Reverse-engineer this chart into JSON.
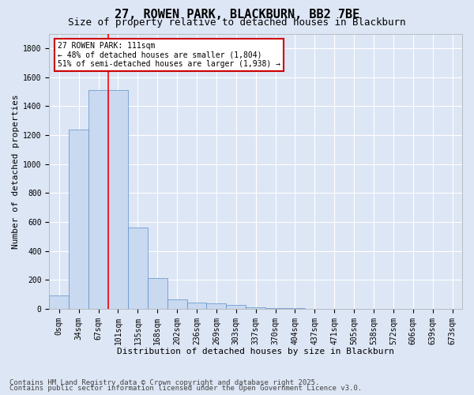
{
  "title_line1": "27, ROWEN PARK, BLACKBURN, BB2 7BE",
  "title_line2": "Size of property relative to detached houses in Blackburn",
  "xlabel": "Distribution of detached houses by size in Blackburn",
  "ylabel": "Number of detached properties",
  "categories": [
    "0sqm",
    "34sqm",
    "67sqm",
    "101sqm",
    "135sqm",
    "168sqm",
    "202sqm",
    "236sqm",
    "269sqm",
    "303sqm",
    "337sqm",
    "370sqm",
    "404sqm",
    "437sqm",
    "471sqm",
    "505sqm",
    "538sqm",
    "572sqm",
    "606sqm",
    "639sqm",
    "673sqm"
  ],
  "values": [
    90,
    1235,
    1510,
    1510,
    560,
    210,
    65,
    45,
    35,
    27,
    10,
    5,
    3,
    0,
    0,
    0,
    0,
    0,
    0,
    0,
    0
  ],
  "bar_color": "#c9d9f0",
  "bar_edge_color": "#5b8fc9",
  "ylim": [
    0,
    1900
  ],
  "yticks": [
    0,
    200,
    400,
    600,
    800,
    1000,
    1200,
    1400,
    1600,
    1800
  ],
  "red_line_x": 2.5,
  "annotation_text": "27 ROWEN PARK: 111sqm\n← 48% of detached houses are smaller (1,804)\n51% of semi-detached houses are larger (1,938) →",
  "annotation_box_color": "#ffffff",
  "annotation_box_edge": "#cc0000",
  "footer_line1": "Contains HM Land Registry data © Crown copyright and database right 2025.",
  "footer_line2": "Contains public sector information licensed under the Open Government Licence v3.0.",
  "background_color": "#dde6f5",
  "plot_background": "#dde6f5",
  "grid_color": "#ffffff",
  "title_fontsize": 11,
  "subtitle_fontsize": 9,
  "axis_label_fontsize": 8,
  "tick_fontsize": 7,
  "annotation_fontsize": 7,
  "footer_fontsize": 6.5
}
